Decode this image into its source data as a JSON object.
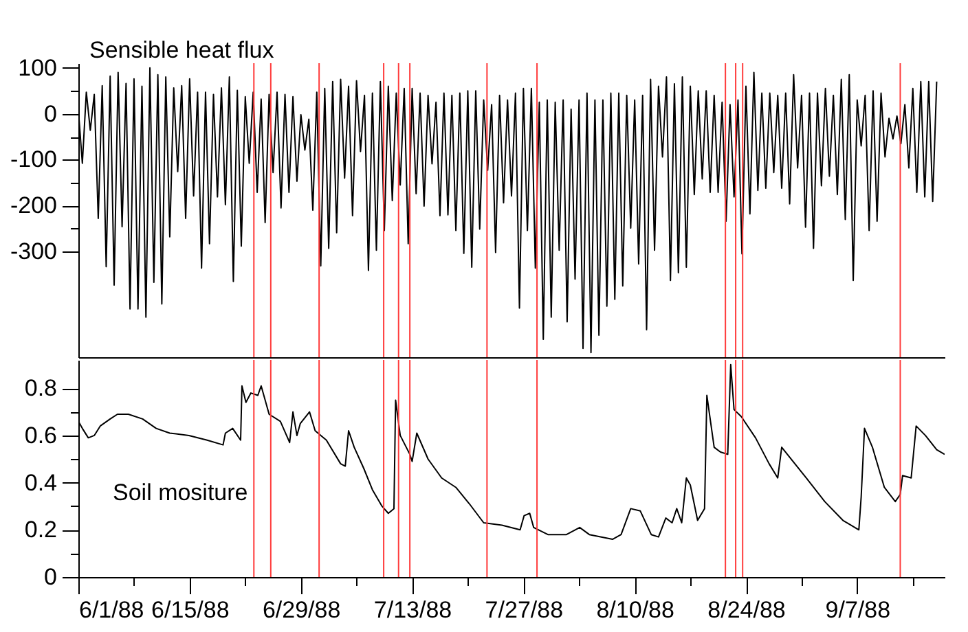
{
  "chart_data": [
    {
      "type": "line",
      "title": "Sensible heat flux",
      "tick_labels": "y",
      "xlim": [
        "1988-06-01",
        "1988-09-18"
      ],
      "ylim": [
        -530,
        110
      ],
      "yticks": [
        100,
        {
          "value": 50,
          "label": null
        },
        0,
        {
          "value": -50,
          "label": null
        },
        -100,
        {
          "value": -150,
          "label": null
        },
        -200,
        {
          "value": -250,
          "label": null
        },
        -300
      ],
      "x": [
        "1988-06-01",
        "1988-06-01T12:00",
        "1988-06-02",
        "1988-06-02T12:00",
        "1988-06-03",
        "1988-06-03T12:00",
        "1988-06-04",
        "1988-06-04T12:00",
        "1988-06-05",
        "1988-06-05T12:00",
        "1988-06-06",
        "1988-06-06T12:00",
        "1988-06-07",
        "1988-06-07T12:00",
        "1988-06-08",
        "1988-06-08T12:00",
        "1988-06-09",
        "1988-06-09T12:00",
        "1988-06-10",
        "1988-06-10T12:00",
        "1988-06-11",
        "1988-06-11T12:00",
        "1988-06-12",
        "1988-06-12T12:00",
        "1988-06-13",
        "1988-06-13T12:00",
        "1988-06-14",
        "1988-06-14T12:00",
        "1988-06-15",
        "1988-06-15T12:00",
        "1988-06-16",
        "1988-06-16T12:00",
        "1988-06-17",
        "1988-06-17T12:00",
        "1988-06-18",
        "1988-06-18T12:00",
        "1988-06-19",
        "1988-06-19T12:00",
        "1988-06-20",
        "1988-06-20T12:00",
        "1988-06-21",
        "1988-06-21T12:00",
        "1988-06-22",
        "1988-06-22T12:00",
        "1988-06-23",
        "1988-06-23T12:00",
        "1988-06-24",
        "1988-06-24T12:00",
        "1988-06-25",
        "1988-06-25T12:00",
        "1988-06-26",
        "1988-06-26T12:00",
        "1988-06-27",
        "1988-06-27T12:00",
        "1988-06-28",
        "1988-06-28T12:00",
        "1988-06-29",
        "1988-06-29T12:00",
        "1988-06-30",
        "1988-06-30T12:00",
        "1988-07-01",
        "1988-07-01T12:00",
        "1988-07-02",
        "1988-07-02T12:00",
        "1988-07-03",
        "1988-07-03T12:00",
        "1988-07-04",
        "1988-07-04T12:00",
        "1988-07-05",
        "1988-07-05T12:00",
        "1988-07-06",
        "1988-07-06T12:00",
        "1988-07-07",
        "1988-07-07T12:00",
        "1988-07-08",
        "1988-07-08T12:00",
        "1988-07-09",
        "1988-07-09T12:00",
        "1988-07-10",
        "1988-07-10T12:00",
        "1988-07-11",
        "1988-07-11T12:00",
        "1988-07-12",
        "1988-07-12T12:00",
        "1988-07-13",
        "1988-07-13T12:00",
        "1988-07-14",
        "1988-07-14T12:00",
        "1988-07-15",
        "1988-07-15T12:00",
        "1988-07-16",
        "1988-07-16T12:00",
        "1988-07-17",
        "1988-07-17T12:00",
        "1988-07-18",
        "1988-07-18T12:00",
        "1988-07-19",
        "1988-07-19T12:00",
        "1988-07-20",
        "1988-07-20T12:00",
        "1988-07-21",
        "1988-07-21T12:00",
        "1988-07-22",
        "1988-07-22T12:00",
        "1988-07-23",
        "1988-07-23T12:00",
        "1988-07-24",
        "1988-07-24T12:00",
        "1988-07-25",
        "1988-07-25T12:00",
        "1988-07-26",
        "1988-07-26T12:00",
        "1988-07-27",
        "1988-07-27T12:00",
        "1988-07-28",
        "1988-07-28T12:00",
        "1988-07-29",
        "1988-07-29T12:00",
        "1988-07-30",
        "1988-07-30T12:00",
        "1988-07-31",
        "1988-07-31T12:00",
        "1988-08-01",
        "1988-08-01T12:00",
        "1988-08-02",
        "1988-08-02T12:00",
        "1988-08-03",
        "1988-08-03T12:00",
        "1988-08-04",
        "1988-08-04T12:00",
        "1988-08-05",
        "1988-08-05T12:00",
        "1988-08-06",
        "1988-08-06T12:00",
        "1988-08-07",
        "1988-08-07T12:00",
        "1988-08-08",
        "1988-08-08T12:00",
        "1988-08-09",
        "1988-08-09T12:00",
        "1988-08-10",
        "1988-08-10T12:00",
        "1988-08-11",
        "1988-08-11T12:00",
        "1988-08-12",
        "1988-08-12T12:00",
        "1988-08-13",
        "1988-08-13T12:00",
        "1988-08-14",
        "1988-08-14T12:00",
        "1988-08-15",
        "1988-08-15T12:00",
        "1988-08-16",
        "1988-08-16T12:00",
        "1988-08-17",
        "1988-08-17T12:00",
        "1988-08-18",
        "1988-08-18T12:00",
        "1988-08-19",
        "1988-08-19T12:00",
        "1988-08-20",
        "1988-08-20T12:00",
        "1988-08-21",
        "1988-08-21T12:00",
        "1988-08-22",
        "1988-08-22T12:00",
        "1988-08-23",
        "1988-08-23T12:00",
        "1988-08-24",
        "1988-08-24T12:00",
        "1988-08-25",
        "1988-08-25T12:00",
        "1988-08-26",
        "1988-08-26T12:00",
        "1988-08-27",
        "1988-08-27T12:00",
        "1988-08-28",
        "1988-08-28T12:00",
        "1988-08-29",
        "1988-08-29T12:00",
        "1988-08-30",
        "1988-08-30T12:00",
        "1988-08-31",
        "1988-08-31T12:00",
        "1988-09-01",
        "1988-09-01T12:00",
        "1988-09-02",
        "1988-09-02T12:00",
        "1988-09-03",
        "1988-09-03T12:00",
        "1988-09-04",
        "1988-09-04T12:00",
        "1988-09-05",
        "1988-09-05T12:00",
        "1988-09-06",
        "1988-09-06T12:00",
        "1988-09-07",
        "1988-09-07T12:00",
        "1988-09-08",
        "1988-09-08T12:00",
        "1988-09-09",
        "1988-09-09T12:00",
        "1988-09-10",
        "1988-09-10T12:00",
        "1988-09-11",
        "1988-09-11T12:00",
        "1988-09-12",
        "1988-09-12T12:00",
        "1988-09-13",
        "1988-09-13T12:00",
        "1988-09-14",
        "1988-09-14T12:00",
        "1988-09-15",
        "1988-09-15T12:00",
        "1988-09-16",
        "1988-09-16T12:00",
        "1988-09-17"
      ],
      "series": [
        {
          "color": "#000000",
          "values": [
            8,
            -108,
            47,
            -36,
            42,
            -228,
            61,
            -333,
            82,
            -373,
            90,
            -246,
            66,
            -425,
            76,
            -425,
            60,
            -443,
            100,
            -367,
            85,
            -414,
            80,
            -268,
            56,
            -126,
            61,
            -228,
            76,
            -179,
            47,
            -336,
            47,
            -283,
            42,
            -181,
            56,
            -198,
            80,
            -365,
            51,
            -288,
            37,
            -108,
            47,
            -171,
            32,
            -237,
            42,
            -128,
            47,
            -205,
            42,
            -171,
            37,
            -147,
            -2,
            -79,
            -12,
            -210,
            47,
            -331,
            55,
            -293,
            70,
            -259,
            75,
            -140,
            60,
            -222,
            72,
            -82,
            40,
            -341,
            45,
            -297,
            70,
            -254,
            60,
            -189,
            45,
            -155,
            55,
            -283,
            55,
            -174,
            45,
            -201,
            40,
            -109,
            25,
            -222,
            45,
            -220,
            40,
            -254,
            45,
            -304,
            50,
            -334,
            50,
            -251,
            30,
            -123,
            20,
            -302,
            40,
            -194,
            30,
            -179,
            45,
            -423,
            55,
            -254,
            55,
            -336,
            25,
            -491,
            30,
            -443,
            25,
            -297,
            30,
            -453,
            10,
            -360,
            30,
            -511,
            45,
            -520,
            30,
            -482,
            30,
            -419,
            45,
            -404,
            45,
            -375,
            40,
            -249,
            30,
            -327,
            40,
            -470,
            75,
            -297,
            60,
            -94,
            80,
            -363,
            65,
            -346,
            80,
            -334,
            60,
            -176,
            50,
            -142,
            50,
            -171,
            40,
            -171,
            25,
            -234,
            20,
            -181,
            30,
            -305,
            60,
            -218,
            90,
            -167,
            45,
            -162,
            45,
            -128,
            40,
            -162,
            45,
            -196,
            85,
            -118,
            40,
            -247,
            45,
            -293,
            45,
            -157,
            55,
            -136,
            40,
            -176,
            75,
            -230,
            85,
            -363,
            30,
            -70,
            40,
            -254,
            50,
            -234,
            45,
            -94,
            -10,
            -55,
            -5,
            -65,
            20,
            -118,
            55,
            -171,
            70,
            -181,
            70,
            -191,
            70
          ]
        }
      ],
      "ref_lines": [
        {
          "axis": "x",
          "value": "1988-06-23T02:00",
          "color": "#ff3b3b"
        },
        {
          "axis": "x",
          "value": "1988-06-25T05:00",
          "color": "#ff3b3b"
        },
        {
          "axis": "x",
          "value": "1988-07-01T07:00",
          "color": "#ff3b3b"
        },
        {
          "axis": "x",
          "value": "1988-07-09T10:00",
          "color": "#ff3b3b"
        },
        {
          "axis": "x",
          "value": "1988-07-11T07:00",
          "color": "#ff3b3b"
        },
        {
          "axis": "x",
          "value": "1988-07-12T17:00",
          "color": "#ff3b3b"
        },
        {
          "axis": "x",
          "value": "1988-07-22T10:00",
          "color": "#ff3b3b"
        },
        {
          "axis": "x",
          "value": "1988-07-28T17:00",
          "color": "#ff3b3b"
        },
        {
          "axis": "x",
          "value": "1988-08-21T10:00",
          "color": "#ff3b3b"
        },
        {
          "axis": "x",
          "value": "1988-08-22T17:00",
          "color": "#ff3b3b"
        },
        {
          "axis": "x",
          "value": "1988-08-23T14:00",
          "color": "#ff3b3b"
        },
        {
          "axis": "x",
          "value": "1988-09-12T10:00",
          "color": "#ff3b3b"
        }
      ]
    },
    {
      "type": "line",
      "title": "Soil mositure",
      "xlim": [
        "1988-06-01",
        "1988-09-18"
      ],
      "xticks": [
        {
          "value": "1988-06-01",
          "label": "6/1/88"
        },
        {
          "value": "1988-06-08",
          "label": null
        },
        {
          "value": "1988-06-15",
          "label": "6/15/88"
        },
        {
          "value": "1988-06-22",
          "label": null
        },
        {
          "value": "1988-06-29",
          "label": "6/29/88"
        },
        {
          "value": "1988-07-06",
          "label": null
        },
        {
          "value": "1988-07-13",
          "label": "7/13/88"
        },
        {
          "value": "1988-07-20",
          "label": null
        },
        {
          "value": "1988-07-27",
          "label": "7/27/88"
        },
        {
          "value": "1988-08-03",
          "label": null
        },
        {
          "value": "1988-08-10",
          "label": "8/10/88"
        },
        {
          "value": "1988-08-17",
          "label": null
        },
        {
          "value": "1988-08-24",
          "label": "8/24/88"
        },
        {
          "value": "1988-08-31",
          "label": null
        },
        {
          "value": "1988-09-07",
          "label": "9/7/88"
        },
        {
          "value": "1988-09-14",
          "label": null
        }
      ],
      "ylim": [
        0,
        0.92
      ],
      "yticks": [
        0,
        {
          "value": 0.1,
          "label": null
        },
        0.2,
        {
          "value": 0.3,
          "label": null
        },
        0.4,
        {
          "value": 0.5,
          "label": null
        },
        0.6,
        {
          "value": 0.7,
          "label": null
        },
        0.8
      ],
      "x": [
        "1988-06-01T00:00",
        "1988-06-01T12:00",
        "1988-06-02T06:00",
        "1988-06-03T00:00",
        "1988-06-03T18:00",
        "1988-06-05T00:00",
        "1988-06-05T22:00",
        "1988-06-07T07:00",
        "1988-06-09T02:00",
        "1988-06-10T19:00",
        "1988-06-12T12:00",
        "1988-06-14T22:00",
        "1988-06-17T05:00",
        "1988-06-19T05:00",
        "1988-06-19T12:00",
        "1988-06-20T10:00",
        "1988-06-21T10:00",
        "1988-06-21T14:00",
        "1988-06-22T02:00",
        "1988-06-22T17:00",
        "1988-06-23T14:00",
        "1988-06-24T00:00",
        "1988-06-25T00:00",
        "1988-06-26T10:00",
        "1988-06-27T14:00",
        "1988-06-28T00:00",
        "1988-06-28T12:00",
        "1988-06-28T22:00",
        "1988-06-30T02:00",
        "1988-06-30T19:00",
        "1988-07-02T05:00",
        "1988-07-04T00:00",
        "1988-07-04T14:00",
        "1988-07-05T00:00",
        "1988-07-05T17:00",
        "1988-07-06T22:00",
        "1988-07-08T00:00",
        "1988-07-09T05:00",
        "1988-07-10T00:00",
        "1988-07-10T17:00",
        "1988-07-10T22:00",
        "1988-07-11T12:00",
        "1988-07-12T17:00",
        "1988-07-13T00:00",
        "1988-07-13T14:00",
        "1988-07-15T00:00",
        "1988-07-16T17:00",
        "1988-07-18T12:00",
        "1988-07-20T05:00",
        "1988-07-22T00:00",
        "1988-07-24T07:00",
        "1988-07-26T14:00",
        "1988-07-27T02:00",
        "1988-07-27T19:00",
        "1988-07-28T07:00",
        "1988-07-30T02:00",
        "1988-08-01T10:00",
        "1988-08-03T02:00",
        "1988-08-04T07:00",
        "1988-08-07T05:00",
        "1988-08-08T07:00",
        "1988-08-09T12:00",
        "1988-08-10T17:00",
        "1988-08-12T02:00",
        "1988-08-13T00:00",
        "1988-08-13T22:00",
        "1988-08-14T17:00",
        "1988-08-15T07:00",
        "1988-08-15T22:00",
        "1988-08-16T12:00",
        "1988-08-17T00:00",
        "1988-08-17T22:00",
        "1988-08-18T19:00",
        "1988-08-19T02:00",
        "1988-08-20T00:00",
        "1988-08-20T19:00",
        "1988-08-21T17:00",
        "1988-08-22T02:00",
        "1988-08-22T12:00",
        "1988-08-23T10:00",
        "1988-08-25T05:00",
        "1988-08-26T22:00",
        "1988-08-28T00:00",
        "1988-08-28T12:00",
        "1988-08-29T05:00",
        "1988-08-31T14:00",
        "1988-09-02T22:00",
        "1988-09-05T05:00",
        "1988-09-07T05:00",
        "1988-09-07T12:00",
        "1988-09-07T22:00",
        "1988-09-08T22:00",
        "1988-09-10T10:00",
        "1988-09-11T19:00",
        "1988-09-12T10:00",
        "1988-09-12T17:00",
        "1988-09-13T19:00",
        "1988-09-14T10:00",
        "1988-09-15T14:00",
        "1988-09-17T00:00",
        "1988-09-18T00:00"
      ],
      "series": [
        {
          "color": "#000000",
          "values": [
            0.66,
            0.63,
            0.59,
            0.6,
            0.64,
            0.67,
            0.69,
            0.69,
            0.67,
            0.63,
            0.61,
            0.6,
            0.58,
            0.56,
            0.61,
            0.63,
            0.58,
            0.81,
            0.74,
            0.78,
            0.77,
            0.81,
            0.69,
            0.66,
            0.57,
            0.7,
            0.6,
            0.65,
            0.7,
            0.62,
            0.58,
            0.48,
            0.47,
            0.62,
            0.55,
            0.46,
            0.37,
            0.3,
            0.27,
            0.29,
            0.75,
            0.6,
            0.52,
            0.49,
            0.61,
            0.5,
            0.42,
            0.38,
            0.31,
            0.23,
            0.22,
            0.2,
            0.26,
            0.27,
            0.21,
            0.18,
            0.18,
            0.21,
            0.18,
            0.16,
            0.18,
            0.29,
            0.28,
            0.18,
            0.17,
            0.25,
            0.23,
            0.29,
            0.23,
            0.42,
            0.39,
            0.24,
            0.29,
            0.77,
            0.55,
            0.53,
            0.52,
            0.9,
            0.71,
            0.68,
            0.59,
            0.48,
            0.42,
            0.55,
            0.52,
            0.42,
            0.32,
            0.24,
            0.2,
            0.34,
            0.63,
            0.55,
            0.38,
            0.32,
            0.35,
            0.43,
            0.42,
            0.64,
            0.6,
            0.54,
            0.52
          ]
        }
      ],
      "ref_lines": [
        {
          "axis": "x",
          "value": "1988-06-23T02:00",
          "color": "#ff3b3b"
        },
        {
          "axis": "x",
          "value": "1988-06-25T05:00",
          "color": "#ff3b3b"
        },
        {
          "axis": "x",
          "value": "1988-07-01T07:00",
          "color": "#ff3b3b"
        },
        {
          "axis": "x",
          "value": "1988-07-09T10:00",
          "color": "#ff3b3b"
        },
        {
          "axis": "x",
          "value": "1988-07-11T07:00",
          "color": "#ff3b3b"
        },
        {
          "axis": "x",
          "value": "1988-07-12T17:00",
          "color": "#ff3b3b"
        },
        {
          "axis": "x",
          "value": "1988-07-22T10:00",
          "color": "#ff3b3b"
        },
        {
          "axis": "x",
          "value": "1988-07-28T17:00",
          "color": "#ff3b3b"
        },
        {
          "axis": "x",
          "value": "1988-08-21T10:00",
          "color": "#ff3b3b"
        },
        {
          "axis": "x",
          "value": "1988-08-22T17:00",
          "color": "#ff3b3b"
        },
        {
          "axis": "x",
          "value": "1988-08-23T14:00",
          "color": "#ff3b3b"
        },
        {
          "axis": "x",
          "value": "1988-09-12T10:00",
          "color": "#ff3b3b"
        }
      ]
    }
  ]
}
